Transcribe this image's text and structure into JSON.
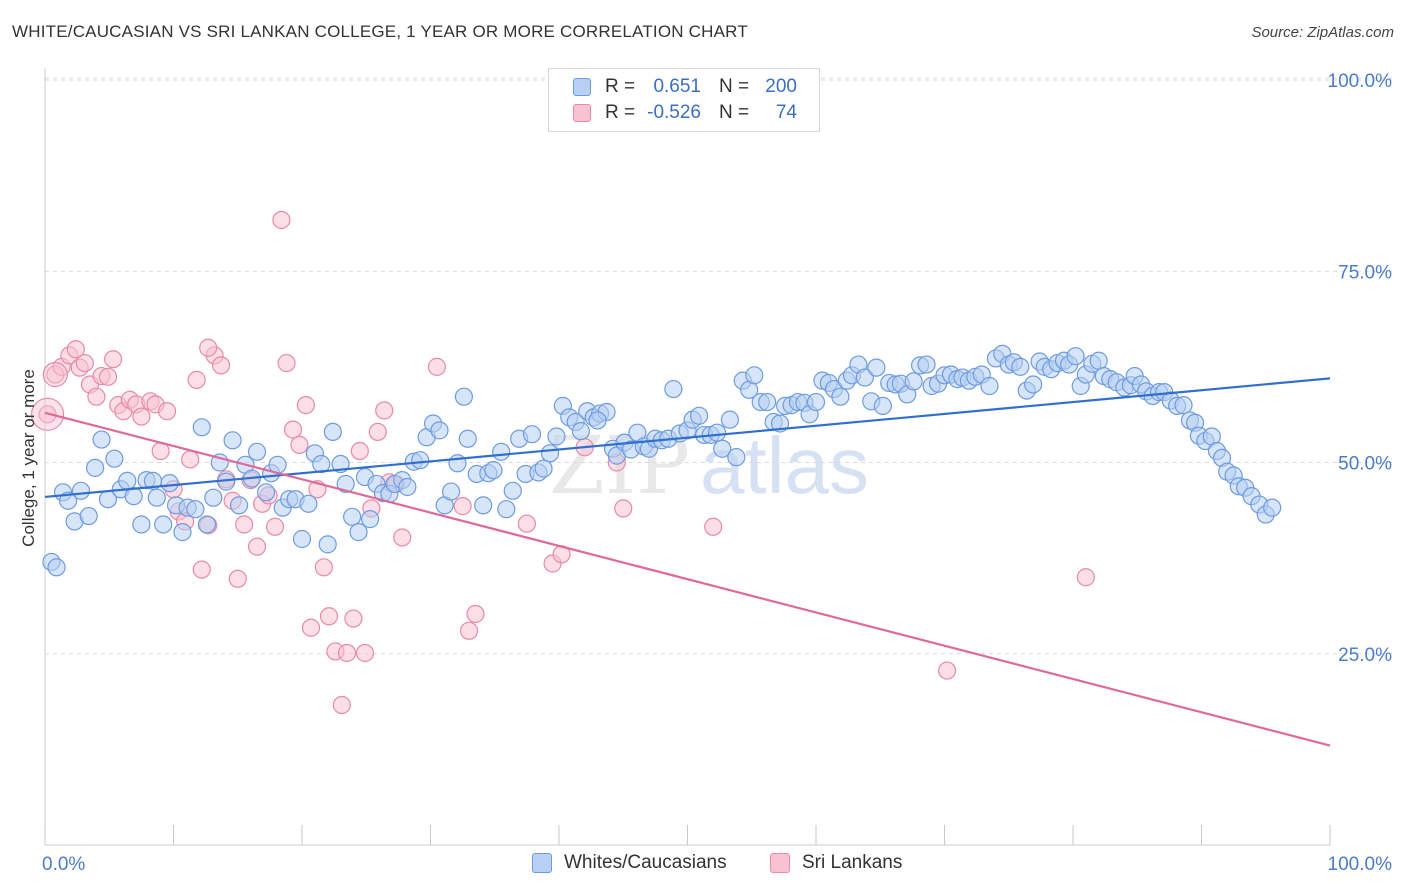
{
  "title": "WHITE/CAUCASIAN VS SRI LANKAN COLLEGE, 1 YEAR OR MORE CORRELATION CHART",
  "source": "Source: ZipAtlas.com",
  "watermark": {
    "zip": "ZIP",
    "atlas": "atlas"
  },
  "legend": {
    "rows": [
      {
        "r_label": "R =",
        "r_value": "0.651",
        "n_label": "N =",
        "n_value": "200"
      },
      {
        "r_label": "R =",
        "r_value": "-0.526",
        "n_label": "N =",
        "n_value": "74"
      }
    ]
  },
  "bottom_legend": [
    "Whites/Caucasians",
    "Sri Lankans"
  ],
  "colors": {
    "blue_fill": "#b7d0f3",
    "blue_stroke": "#6e9be0",
    "blue_line": "#2f6fd0",
    "pink_fill": "#f7c2d2",
    "pink_stroke": "#e88aa7",
    "pink_line": "#e0699a",
    "grid": "#d9d9d9",
    "tick_text": "#4a7cc9"
  },
  "chart_data": {
    "type": "scatter",
    "title": "WHITE/CAUCASIAN VS SRI LANKAN COLLEGE, 1 YEAR OR MORE CORRELATION CHART",
    "xlabel": "",
    "ylabel": "College, 1 year or more",
    "xlim": [
      0,
      100
    ],
    "ylim": [
      0,
      105
    ],
    "x_tick_labels": [
      "0.0%",
      "100.0%"
    ],
    "y_ticks": [
      25,
      50,
      75,
      100
    ],
    "y_tick_labels": [
      "25.0%",
      "50.0%",
      "75.0%",
      "100.0%"
    ],
    "grid": true,
    "legend_placement": "top-center",
    "series": [
      {
        "name": "Whites/Caucasians",
        "r": 0.651,
        "n": 200,
        "trend": {
          "x": [
            0,
            100
          ],
          "y": [
            45.5,
            61.0
          ]
        },
        "points": [
          [
            0.5,
            37.0
          ],
          [
            0.9,
            36.3
          ],
          [
            1.4,
            46.1
          ],
          [
            1.8,
            45.0
          ],
          [
            2.3,
            42.3
          ],
          [
            2.8,
            46.3
          ],
          [
            3.4,
            43.0
          ],
          [
            3.9,
            49.3
          ],
          [
            4.4,
            53.0
          ],
          [
            4.9,
            45.2
          ],
          [
            5.4,
            50.5
          ],
          [
            5.9,
            46.5
          ],
          [
            6.4,
            47.6
          ],
          [
            6.9,
            45.6
          ],
          [
            7.5,
            41.9
          ],
          [
            7.9,
            47.7
          ],
          [
            8.4,
            47.6
          ],
          [
            8.7,
            45.4
          ],
          [
            9.2,
            41.9
          ],
          [
            9.7,
            47.3
          ],
          [
            10.2,
            44.4
          ],
          [
            10.7,
            40.9
          ],
          [
            11.1,
            44.1
          ],
          [
            11.7,
            43.9
          ],
          [
            12.2,
            54.6
          ],
          [
            12.6,
            41.9
          ],
          [
            13.1,
            45.4
          ],
          [
            13.6,
            50.0
          ],
          [
            14.1,
            47.5
          ],
          [
            14.6,
            52.9
          ],
          [
            15.1,
            44.4
          ],
          [
            15.6,
            49.7
          ],
          [
            16.1,
            47.9
          ],
          [
            16.5,
            51.4
          ],
          [
            17.2,
            46.1
          ],
          [
            17.6,
            48.6
          ],
          [
            18.1,
            49.7
          ],
          [
            18.5,
            44.1
          ],
          [
            19.0,
            45.2
          ],
          [
            19.5,
            45.2
          ],
          [
            20.0,
            40.0
          ],
          [
            20.5,
            44.6
          ],
          [
            21.0,
            51.2
          ],
          [
            21.5,
            49.8
          ],
          [
            22.0,
            39.3
          ],
          [
            22.4,
            54.0
          ],
          [
            23.0,
            49.8
          ],
          [
            23.4,
            47.2
          ],
          [
            23.9,
            42.9
          ],
          [
            24.4,
            40.9
          ],
          [
            24.9,
            48.1
          ],
          [
            25.3,
            42.6
          ],
          [
            25.8,
            47.2
          ],
          [
            26.3,
            46.0
          ],
          [
            26.8,
            45.9
          ],
          [
            27.2,
            47.2
          ],
          [
            27.8,
            47.7
          ],
          [
            28.2,
            46.8
          ],
          [
            28.7,
            50.1
          ],
          [
            29.2,
            50.3
          ],
          [
            29.7,
            53.3
          ],
          [
            30.2,
            55.1
          ],
          [
            30.7,
            54.2
          ],
          [
            31.1,
            44.4
          ],
          [
            31.6,
            46.2
          ],
          [
            32.1,
            49.9
          ],
          [
            32.6,
            58.6
          ],
          [
            32.9,
            53.1
          ],
          [
            33.6,
            48.5
          ],
          [
            34.1,
            44.4
          ],
          [
            34.5,
            48.6
          ],
          [
            34.9,
            49.0
          ],
          [
            35.5,
            51.4
          ],
          [
            35.9,
            43.9
          ],
          [
            36.4,
            46.3
          ],
          [
            36.9,
            53.1
          ],
          [
            37.4,
            48.5
          ],
          [
            37.9,
            53.7
          ],
          [
            38.4,
            48.7
          ],
          [
            38.8,
            49.2
          ],
          [
            39.3,
            51.2
          ],
          [
            39.8,
            53.4
          ],
          [
            40.3,
            57.4
          ],
          [
            40.8,
            55.9
          ],
          [
            41.3,
            55.3
          ],
          [
            41.7,
            54.1
          ],
          [
            42.2,
            56.7
          ],
          [
            42.7,
            55.9
          ],
          [
            43.2,
            56.4
          ],
          [
            43.7,
            56.6
          ],
          [
            44.2,
            51.8
          ],
          [
            44.5,
            50.9
          ],
          [
            45.1,
            52.6
          ],
          [
            45.6,
            51.7
          ],
          [
            46.1,
            53.9
          ],
          [
            46.6,
            52.1
          ],
          [
            47.0,
            51.8
          ],
          [
            47.5,
            53.1
          ],
          [
            48.0,
            52.9
          ],
          [
            48.5,
            53.1
          ],
          [
            48.9,
            59.6
          ],
          [
            49.4,
            53.8
          ],
          [
            50.0,
            54.2
          ],
          [
            50.4,
            55.6
          ],
          [
            50.9,
            56.1
          ],
          [
            51.3,
            53.6
          ],
          [
            51.8,
            53.6
          ],
          [
            52.3,
            53.9
          ],
          [
            52.7,
            51.8
          ],
          [
            53.3,
            55.6
          ],
          [
            53.8,
            50.7
          ],
          [
            54.3,
            60.7
          ],
          [
            54.8,
            59.5
          ],
          [
            55.2,
            61.4
          ],
          [
            55.7,
            57.9
          ],
          [
            56.2,
            57.9
          ],
          [
            56.7,
            55.3
          ],
          [
            57.2,
            55.1
          ],
          [
            57.6,
            57.4
          ],
          [
            58.1,
            57.5
          ],
          [
            58.6,
            57.9
          ],
          [
            59.1,
            57.8
          ],
          [
            59.5,
            56.3
          ],
          [
            60.0,
            57.9
          ],
          [
            60.5,
            60.7
          ],
          [
            61.0,
            60.4
          ],
          [
            61.4,
            59.6
          ],
          [
            61.9,
            58.6
          ],
          [
            62.4,
            60.7
          ],
          [
            62.8,
            61.4
          ],
          [
            63.3,
            62.8
          ],
          [
            63.8,
            61.1
          ],
          [
            64.3,
            58.0
          ],
          [
            64.7,
            62.4
          ],
          [
            65.2,
            57.4
          ],
          [
            65.7,
            60.4
          ],
          [
            66.2,
            60.2
          ],
          [
            66.6,
            60.3
          ],
          [
            67.1,
            58.9
          ],
          [
            67.6,
            60.6
          ],
          [
            68.1,
            62.7
          ],
          [
            68.6,
            62.8
          ],
          [
            69.0,
            60.0
          ],
          [
            69.5,
            60.3
          ],
          [
            70.0,
            61.4
          ],
          [
            70.5,
            61.5
          ],
          [
            71.0,
            60.9
          ],
          [
            71.4,
            61.1
          ],
          [
            71.9,
            60.7
          ],
          [
            72.4,
            61.2
          ],
          [
            72.9,
            61.5
          ],
          [
            73.5,
            60.0
          ],
          [
            74.0,
            63.6
          ],
          [
            74.5,
            64.2
          ],
          [
            75.0,
            62.8
          ],
          [
            75.4,
            63.1
          ],
          [
            75.9,
            62.5
          ],
          [
            76.4,
            59.4
          ],
          [
            76.9,
            60.2
          ],
          [
            77.4,
            63.2
          ],
          [
            77.8,
            62.5
          ],
          [
            78.3,
            62.2
          ],
          [
            78.8,
            63.0
          ],
          [
            79.3,
            63.3
          ],
          [
            79.7,
            62.8
          ],
          [
            80.2,
            63.9
          ],
          [
            80.6,
            60.0
          ],
          [
            81.0,
            61.5
          ],
          [
            81.5,
            62.9
          ],
          [
            82.0,
            63.3
          ],
          [
            82.4,
            61.3
          ],
          [
            82.9,
            60.9
          ],
          [
            83.4,
            60.5
          ],
          [
            84.0,
            59.8
          ],
          [
            84.5,
            60.1
          ],
          [
            84.8,
            61.3
          ],
          [
            85.3,
            60.2
          ],
          [
            85.7,
            59.3
          ],
          [
            86.2,
            58.7
          ],
          [
            86.7,
            59.2
          ],
          [
            87.1,
            59.2
          ],
          [
            87.6,
            58.1
          ],
          [
            88.1,
            57.4
          ],
          [
            88.6,
            57.5
          ],
          [
            89.1,
            55.5
          ],
          [
            89.5,
            55.2
          ],
          [
            89.8,
            53.5
          ],
          [
            90.3,
            52.8
          ],
          [
            90.8,
            53.4
          ],
          [
            91.2,
            51.5
          ],
          [
            91.6,
            50.6
          ],
          [
            92.0,
            48.8
          ],
          [
            92.5,
            48.3
          ],
          [
            92.9,
            46.9
          ],
          [
            93.4,
            46.7
          ],
          [
            93.9,
            45.6
          ],
          [
            94.5,
            44.5
          ],
          [
            95.0,
            43.2
          ],
          [
            95.5,
            44.1
          ],
          [
            43.0,
            55.5
          ]
        ]
      },
      {
        "name": "Sri Lankans",
        "r": -0.526,
        "n": 74,
        "trend": {
          "x": [
            0,
            100
          ],
          "y": [
            56.5,
            13.0
          ]
        },
        "points": [
          [
            0.2,
            56.3
          ],
          [
            0.8,
            61.5
          ],
          [
            1.3,
            62.5
          ],
          [
            1.9,
            64.0
          ],
          [
            2.4,
            64.8
          ],
          [
            2.7,
            62.4
          ],
          [
            3.1,
            63.0
          ],
          [
            3.5,
            60.2
          ],
          [
            4.0,
            58.6
          ],
          [
            4.4,
            61.3
          ],
          [
            4.9,
            61.2
          ],
          [
            5.3,
            63.5
          ],
          [
            5.7,
            57.5
          ],
          [
            6.1,
            56.7
          ],
          [
            6.6,
            58.2
          ],
          [
            7.1,
            57.6
          ],
          [
            7.5,
            56.0
          ],
          [
            8.2,
            58.0
          ],
          [
            8.6,
            57.6
          ],
          [
            9.0,
            51.5
          ],
          [
            9.5,
            56.7
          ],
          [
            10.0,
            46.5
          ],
          [
            10.4,
            43.6
          ],
          [
            10.9,
            42.3
          ],
          [
            11.3,
            50.4
          ],
          [
            11.8,
            60.8
          ],
          [
            12.2,
            36.0
          ],
          [
            12.7,
            41.8
          ],
          [
            13.2,
            64.0
          ],
          [
            13.7,
            62.7
          ],
          [
            14.1,
            47.8
          ],
          [
            14.6,
            45.0
          ],
          [
            15.0,
            34.8
          ],
          [
            15.5,
            41.9
          ],
          [
            16.0,
            47.7
          ],
          [
            16.5,
            39.0
          ],
          [
            16.9,
            44.6
          ],
          [
            17.4,
            45.7
          ],
          [
            17.9,
            41.6
          ],
          [
            18.4,
            81.7
          ],
          [
            18.8,
            63.0
          ],
          [
            19.3,
            54.3
          ],
          [
            19.8,
            52.3
          ],
          [
            20.3,
            57.5
          ],
          [
            20.7,
            28.4
          ],
          [
            21.2,
            46.5
          ],
          [
            21.7,
            36.3
          ],
          [
            22.1,
            29.9
          ],
          [
            22.6,
            25.3
          ],
          [
            23.1,
            18.3
          ],
          [
            23.5,
            25.1
          ],
          [
            24.0,
            29.6
          ],
          [
            24.5,
            51.5
          ],
          [
            24.9,
            25.1
          ],
          [
            25.4,
            44.0
          ],
          [
            25.9,
            54.0
          ],
          [
            26.4,
            56.8
          ],
          [
            26.8,
            47.4
          ],
          [
            27.3,
            47.2
          ],
          [
            27.8,
            40.2
          ],
          [
            30.5,
            62.5
          ],
          [
            32.5,
            44.3
          ],
          [
            33.0,
            28.0
          ],
          [
            33.5,
            30.2
          ],
          [
            37.5,
            42.0
          ],
          [
            39.5,
            36.8
          ],
          [
            40.2,
            38.0
          ],
          [
            42.0,
            52.0
          ],
          [
            44.5,
            50.0
          ],
          [
            45.0,
            44.0
          ],
          [
            52.0,
            41.6
          ],
          [
            70.2,
            22.8
          ],
          [
            81.0,
            35.0
          ],
          [
            12.7,
            65.0
          ]
        ]
      }
    ]
  }
}
